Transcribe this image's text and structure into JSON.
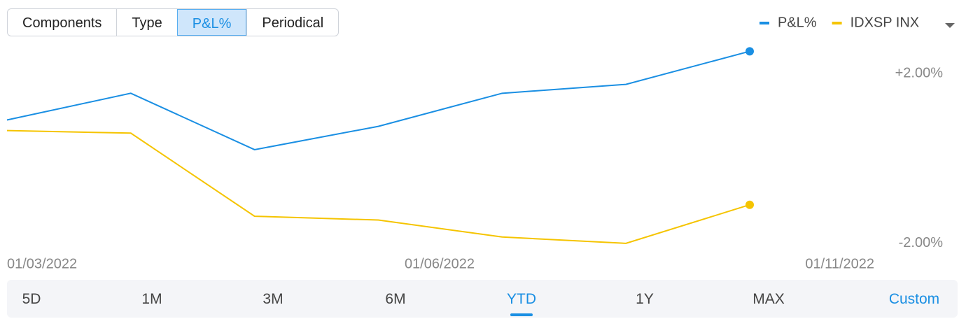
{
  "tabs": {
    "items": [
      "Components",
      "Type",
      "P&L%",
      "Periodical"
    ],
    "selected": 2
  },
  "chart_data": {
    "type": "line",
    "series": [
      {
        "name": "P&L%",
        "color": "#1a8fe3",
        "values": [
          0.91,
          1.54,
          0.21,
          0.76,
          1.54,
          1.75,
          2.53
        ]
      },
      {
        "name": "IDXSP INX",
        "color": "#f5c400",
        "values": [
          0.66,
          0.6,
          -1.36,
          -1.45,
          -1.85,
          -2.0,
          -1.09
        ]
      }
    ],
    "x_labels": [
      "01/03/2022",
      "01/06/2022",
      "01/11/2022"
    ],
    "ylim": [
      -2.2,
      2.75
    ],
    "yticks": [
      {
        "value": 2,
        "label": "+2.00%"
      },
      {
        "value": -2,
        "label": "-2.00%"
      }
    ],
    "grid": false
  },
  "range_selector": {
    "items": [
      "5D",
      "1M",
      "3M",
      "6M",
      "YTD",
      "1Y",
      "MAX",
      "Custom"
    ],
    "selected": 4
  }
}
